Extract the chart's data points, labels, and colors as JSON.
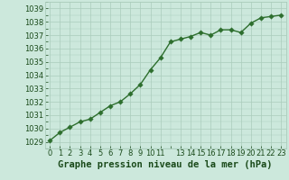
{
  "x": [
    0,
    1,
    2,
    3,
    4,
    5,
    6,
    7,
    8,
    9,
    10,
    11,
    12,
    13,
    14,
    15,
    16,
    17,
    18,
    19,
    20,
    21,
    22,
    23
  ],
  "y": [
    1029.1,
    1029.7,
    1030.1,
    1030.5,
    1030.7,
    1031.2,
    1031.7,
    1032.0,
    1032.6,
    1033.3,
    1034.4,
    1035.3,
    1036.5,
    1036.7,
    1036.9,
    1037.2,
    1037.0,
    1037.4,
    1037.4,
    1037.2,
    1037.9,
    1038.3,
    1038.4,
    1038.5
  ],
  "line_color": "#2d6e2d",
  "marker_color": "#2d6e2d",
  "bg_color": "#cce8dc",
  "plot_bg_color": "#cce8dc",
  "grid_color": "#aaccbb",
  "text_color": "#1a4a1a",
  "xlabel": "Graphe pression niveau de la mer (hPa)",
  "ylim": [
    1028.5,
    1039.5
  ],
  "xlim": [
    -0.5,
    23.5
  ],
  "yticks": [
    1029,
    1030,
    1031,
    1032,
    1033,
    1034,
    1035,
    1036,
    1037,
    1038,
    1039
  ],
  "xticks": [
    0,
    1,
    2,
    3,
    4,
    5,
    6,
    7,
    8,
    9,
    10,
    11,
    13,
    14,
    15,
    16,
    17,
    18,
    19,
    20,
    21,
    22,
    23
  ],
  "xlabel_fontsize": 7.5,
  "tick_fontsize": 6.0,
  "marker_size": 2.8,
  "line_width": 1.0
}
